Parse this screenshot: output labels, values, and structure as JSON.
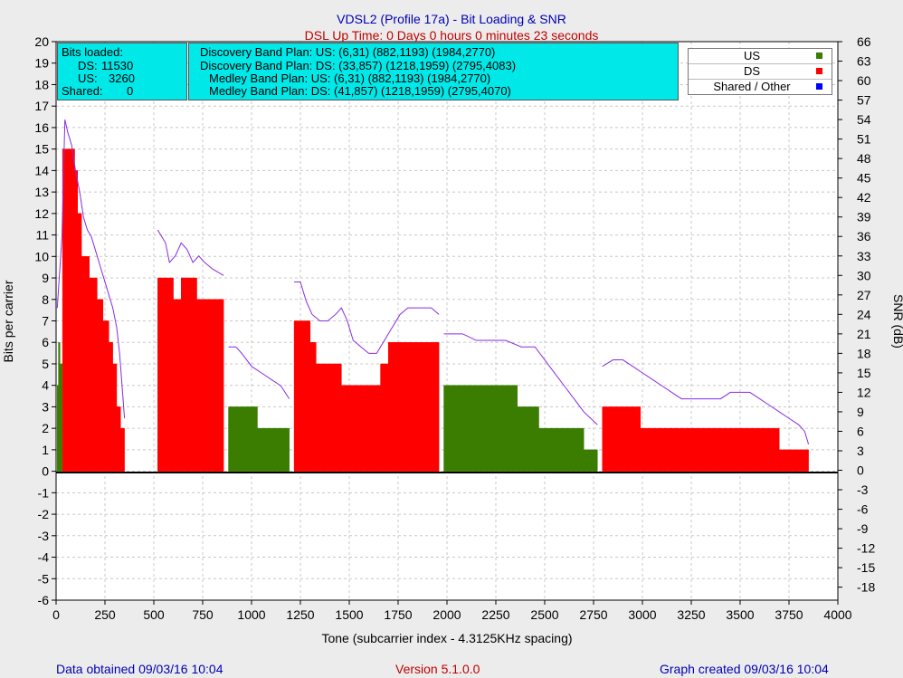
{
  "header": {
    "title": "VDSL2 (Profile 17a) - Bit Loading & SNR",
    "uptime": "DSL Up Time: 0 Days 0 hours 0 minutes 23 seconds"
  },
  "bits_loaded": {
    "heading": "Bits loaded:",
    "ds_label": "DS:",
    "ds_value": "11530",
    "us_label": "US:",
    "us_value": "3260",
    "shared_label": "Shared:",
    "shared_value": "0"
  },
  "band_plans": [
    "Discovery Band Plan: US: (6,31) (882,1193) (1984,2770)",
    "Discovery Band Plan: DS: (33,857) (1218,1959) (2795,4083)",
    "Medley Band Plan: US: (6,31) (882,1193) (1984,2770)",
    "Medley Band Plan: DS: (41,857) (1218,1959) (2795,4070)"
  ],
  "legend": [
    {
      "label": "US",
      "color": "#3a7d00"
    },
    {
      "label": "DS",
      "color": "#ff0000"
    },
    {
      "label": "Shared / Other",
      "color": "#0000ff"
    }
  ],
  "footer": {
    "left": "Data obtained 09/03/16 10:04",
    "center": "Version 5.1.0.0",
    "right": "Graph created 09/03/16 10:04"
  },
  "chart_data": {
    "type": "area",
    "xlabel": "Tone (subcarrier index - 4.3125KHz spacing)",
    "ylabel": "Bits per carrier",
    "y2label": "SNR (dB)",
    "xlim": [
      0,
      4000
    ],
    "ylim": [
      -6,
      20
    ],
    "y2lim": [
      -20,
      66
    ],
    "x_ticks": [
      0,
      250,
      500,
      750,
      1000,
      1250,
      1500,
      1750,
      2000,
      2250,
      2500,
      2750,
      3000,
      3250,
      3500,
      3750,
      4000
    ],
    "y_ticks": [
      -6,
      -5,
      -4,
      -3,
      -2,
      -1,
      0,
      1,
      2,
      3,
      4,
      5,
      6,
      7,
      8,
      9,
      10,
      11,
      12,
      13,
      14,
      15,
      16,
      17,
      18,
      19,
      20
    ],
    "y2_ticks": [
      -18,
      -15,
      -12,
      -9,
      -6,
      -3,
      0,
      3,
      6,
      9,
      12,
      15,
      18,
      21,
      24,
      27,
      30,
      33,
      36,
      39,
      42,
      45,
      48,
      51,
      54,
      57,
      60,
      63,
      66
    ],
    "colors": {
      "us": "#3a7d00",
      "ds": "#ff0000",
      "snr": "#8a2be2",
      "zero": "#000000"
    },
    "series": [
      {
        "name": "US",
        "segments": [
          [
            [
              6,
              4
            ],
            [
              12,
              6
            ],
            [
              20,
              5
            ],
            [
              31,
              4
            ]
          ],
          [
            [
              882,
              3
            ],
            [
              990,
              3
            ],
            [
              1030,
              2
            ],
            [
              1193,
              2
            ]
          ],
          [
            [
              1984,
              4
            ],
            [
              2180,
              4
            ],
            [
              2360,
              3
            ],
            [
              2450,
              3
            ],
            [
              2470,
              2
            ],
            [
              2640,
              2
            ],
            [
              2700,
              1
            ],
            [
              2770,
              1
            ]
          ]
        ]
      },
      {
        "name": "DS",
        "segments": [
          [
            [
              33,
              15
            ],
            [
              80,
              15
            ],
            [
              95,
              14
            ],
            [
              110,
              12
            ],
            [
              130,
              10
            ],
            [
              170,
              9
            ],
            [
              210,
              8
            ],
            [
              240,
              7
            ],
            [
              270,
              6
            ],
            [
              290,
              5
            ],
            [
              310,
              3
            ],
            [
              330,
              2
            ],
            [
              350,
              0
            ]
          ],
          [
            [
              520,
              9
            ],
            [
              580,
              9
            ],
            [
              600,
              8
            ],
            [
              640,
              9
            ],
            [
              700,
              9
            ],
            [
              720,
              8
            ],
            [
              857,
              8
            ]
          ],
          [
            [
              1218,
              7
            ],
            [
              1280,
              7
            ],
            [
              1300,
              6
            ],
            [
              1330,
              5
            ],
            [
              1370,
              5
            ],
            [
              1420,
              5
            ],
            [
              1460,
              4
            ],
            [
              1560,
              4
            ],
            [
              1580,
              4
            ],
            [
              1620,
              4
            ],
            [
              1660,
              5
            ],
            [
              1700,
              6
            ],
            [
              1959,
              6
            ]
          ],
          [
            [
              2795,
              3
            ],
            [
              2960,
              3
            ],
            [
              2990,
              2
            ],
            [
              3680,
              2
            ],
            [
              3700,
              1
            ],
            [
              3850,
              1
            ]
          ]
        ]
      },
      {
        "name": "SNR",
        "axis": "y2",
        "segments": [
          [
            [
              6,
              25
            ],
            [
              30,
              36
            ],
            [
              45,
              54
            ],
            [
              60,
              52
            ],
            [
              80,
              50
            ],
            [
              100,
              46
            ],
            [
              120,
              43
            ],
            [
              140,
              39
            ],
            [
              160,
              37
            ],
            [
              180,
              36
            ],
            [
              200,
              34
            ],
            [
              230,
              31
            ],
            [
              250,
              29
            ],
            [
              270,
              27
            ],
            [
              290,
              25
            ],
            [
              310,
              22
            ],
            [
              325,
              18
            ],
            [
              340,
              12
            ],
            [
              350,
              8
            ]
          ],
          [
            [
              520,
              37
            ],
            [
              540,
              36
            ],
            [
              560,
              35
            ],
            [
              580,
              32
            ],
            [
              610,
              33
            ],
            [
              640,
              35
            ],
            [
              670,
              34
            ],
            [
              700,
              32
            ],
            [
              730,
              33
            ],
            [
              760,
              32
            ],
            [
              800,
              31
            ],
            [
              857,
              30
            ]
          ],
          [
            [
              882,
              19
            ],
            [
              920,
              19
            ],
            [
              950,
              18
            ],
            [
              1000,
              16
            ],
            [
              1050,
              15
            ],
            [
              1100,
              14
            ],
            [
              1150,
              13
            ],
            [
              1193,
              11
            ]
          ],
          [
            [
              1218,
              29
            ],
            [
              1250,
              29
            ],
            [
              1280,
              26
            ],
            [
              1310,
              24
            ],
            [
              1350,
              23
            ],
            [
              1390,
              23
            ],
            [
              1430,
              24
            ],
            [
              1460,
              25
            ],
            [
              1490,
              23
            ],
            [
              1520,
              20
            ],
            [
              1560,
              19
            ],
            [
              1600,
              18
            ],
            [
              1640,
              18
            ],
            [
              1680,
              20
            ],
            [
              1720,
              22
            ],
            [
              1760,
              24
            ],
            [
              1800,
              25
            ],
            [
              1860,
              25
            ],
            [
              1920,
              25
            ],
            [
              1959,
              24
            ]
          ],
          [
            [
              1984,
              21
            ],
            [
              2020,
              21
            ],
            [
              2080,
              21
            ],
            [
              2150,
              20
            ],
            [
              2230,
              20
            ],
            [
              2300,
              20
            ],
            [
              2380,
              19
            ],
            [
              2450,
              19
            ],
            [
              2500,
              17
            ],
            [
              2550,
              15
            ],
            [
              2600,
              13
            ],
            [
              2650,
              11
            ],
            [
              2700,
              9
            ],
            [
              2770,
              7
            ]
          ],
          [
            [
              2795,
              16
            ],
            [
              2850,
              17
            ],
            [
              2900,
              17
            ],
            [
              2950,
              16
            ],
            [
              3000,
              15
            ],
            [
              3050,
              14
            ],
            [
              3100,
              13
            ],
            [
              3150,
              12
            ],
            [
              3200,
              11
            ],
            [
              3250,
              11
            ],
            [
              3300,
              11
            ],
            [
              3350,
              11
            ],
            [
              3400,
              11
            ],
            [
              3450,
              12
            ],
            [
              3500,
              12
            ],
            [
              3550,
              12
            ],
            [
              3600,
              11
            ],
            [
              3650,
              10
            ],
            [
              3700,
              9
            ],
            [
              3750,
              8
            ],
            [
              3800,
              7
            ],
            [
              3830,
              6
            ],
            [
              3850,
              4
            ]
          ]
        ]
      }
    ]
  }
}
